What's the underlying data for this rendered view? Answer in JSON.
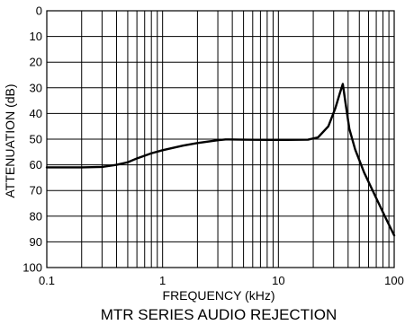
{
  "chart_data": {
    "type": "line",
    "title": "MTR SERIES AUDIO REJECTION",
    "xlabel": "FREQUENCY (kHz)",
    "ylabel": "ATTENUATION (dB)",
    "x_scale": "log",
    "y_inverted": true,
    "xlim": [
      0.1,
      100
    ],
    "ylim": [
      0,
      100
    ],
    "x_tick_labels": [
      "0.1",
      "1",
      "10",
      "100"
    ],
    "y_tick_labels": [
      "0",
      "10",
      "20",
      "30",
      "40",
      "50",
      "60",
      "70",
      "80",
      "90",
      "100"
    ],
    "grid": true,
    "series": [
      {
        "color": "#000000",
        "x": [
          0.1,
          0.2,
          0.3,
          0.4,
          0.5,
          0.6,
          0.8,
          1.0,
          1.5,
          2.0,
          3.0,
          3.5,
          5.0,
          8.0,
          12.0,
          18.0,
          22.0,
          27.0,
          31.0,
          34.0,
          36.0,
          38.0,
          41.0,
          46.0,
          55.0,
          70.0,
          85.0,
          100.0
        ],
        "y": [
          61,
          61,
          60.8,
          60,
          59,
          57.5,
          55.5,
          54.3,
          52.5,
          51.5,
          50.4,
          50.1,
          50.2,
          50.3,
          50.3,
          50.2,
          49.3,
          45,
          38,
          32,
          28.5,
          36,
          46,
          54,
          63,
          73,
          81,
          87.5
        ]
      }
    ]
  }
}
